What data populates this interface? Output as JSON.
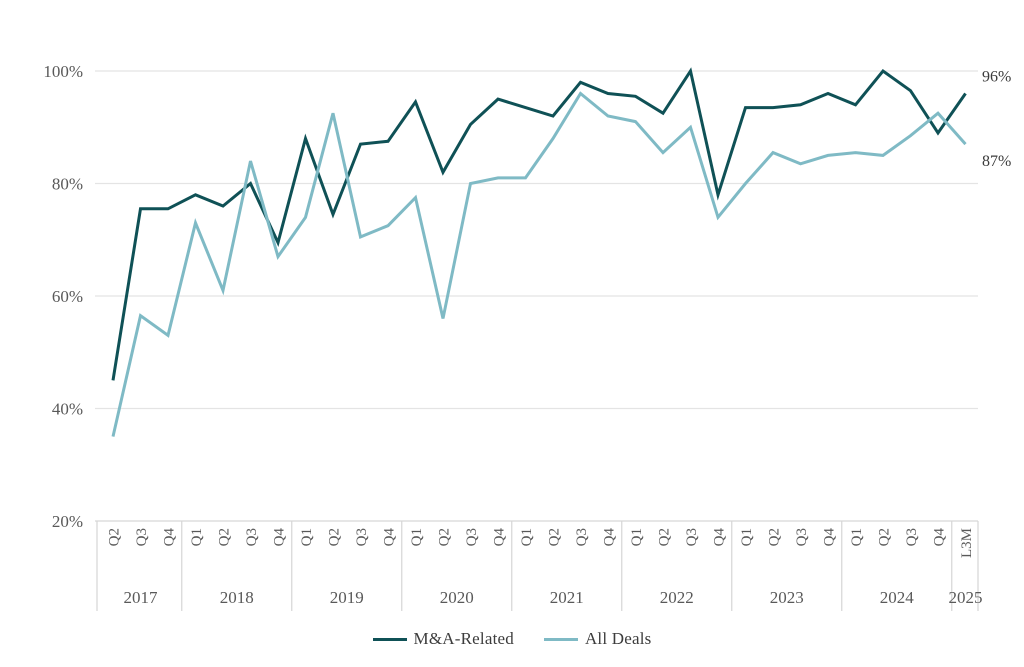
{
  "chart_data": {
    "type": "line",
    "title": "",
    "xlabel": "",
    "ylabel": "",
    "ylim": [
      20,
      100
    ],
    "yticks": [
      20,
      40,
      60,
      80,
      100
    ],
    "ytick_suffix": "%",
    "grid": "horizontal-major",
    "legend_position": "bottom-center",
    "x_groups": [
      {
        "year": "2017",
        "quarters": [
          "Q2",
          "Q3",
          "Q4"
        ]
      },
      {
        "year": "2018",
        "quarters": [
          "Q1",
          "Q2",
          "Q3",
          "Q4"
        ]
      },
      {
        "year": "2019",
        "quarters": [
          "Q1",
          "Q2",
          "Q3",
          "Q4"
        ]
      },
      {
        "year": "2020",
        "quarters": [
          "Q1",
          "Q2",
          "Q3",
          "Q4"
        ]
      },
      {
        "year": "2021",
        "quarters": [
          "Q1",
          "Q2",
          "Q3",
          "Q4"
        ]
      },
      {
        "year": "2022",
        "quarters": [
          "Q1",
          "Q2",
          "Q3",
          "Q4"
        ]
      },
      {
        "year": "2023",
        "quarters": [
          "Q1",
          "Q2",
          "Q3",
          "Q4"
        ]
      },
      {
        "year": "2024",
        "quarters": [
          "Q1",
          "Q2",
          "Q3",
          "Q4"
        ]
      },
      {
        "year": "2025",
        "quarters": [
          "L3M"
        ]
      }
    ],
    "series": [
      {
        "name": "M&A-Related",
        "color": "#0f5156",
        "end_label": "96%",
        "values": [
          45,
          75.5,
          75.5,
          78,
          76,
          80,
          69.5,
          88,
          74.5,
          87,
          87.5,
          94.5,
          82,
          90.5,
          95,
          93.5,
          92,
          98,
          96,
          95.5,
          92.5,
          100,
          78,
          93.5,
          93.5,
          94,
          96,
          94,
          100,
          96.5,
          89,
          96
        ]
      },
      {
        "name": "All Deals",
        "color": "#7fbac5",
        "end_label": "87%",
        "values": [
          35,
          56.5,
          53,
          73,
          61,
          84,
          67,
          74,
          92.5,
          70.5,
          72.5,
          77.5,
          56,
          80,
          81,
          81,
          88,
          96,
          92,
          91,
          85.5,
          90,
          74,
          80,
          85.5,
          83.5,
          85,
          85.5,
          85,
          88.5,
          92.5,
          87
        ]
      }
    ]
  },
  "colors": {
    "gridline": "#e4e4e4",
    "axis_line": "#d6d6d6",
    "tick_text": "#595959",
    "end_label_text": "#3c3c3c"
  }
}
